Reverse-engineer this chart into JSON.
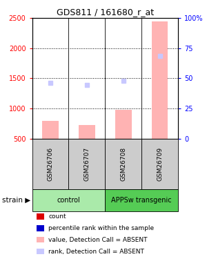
{
  "title": "GDS811 / 161680_r_at",
  "samples": [
    "GSM26706",
    "GSM26707",
    "GSM26708",
    "GSM26709"
  ],
  "bar_values": [
    790,
    730,
    980,
    2450
  ],
  "rank_values": [
    1420,
    1390,
    1460,
    1870
  ],
  "bar_color": "#ffb3b3",
  "rank_color": "#c8c8ff",
  "ylim_left": [
    500,
    2500
  ],
  "ylim_right": [
    0,
    100
  ],
  "yticks_left": [
    500,
    1000,
    1500,
    2000,
    2500
  ],
  "yticks_right": [
    0,
    25,
    50,
    75,
    100
  ],
  "ytick_labels_right": [
    "0",
    "25",
    "50",
    "75",
    "100%"
  ],
  "grid_lines": [
    1000,
    1500,
    2000
  ],
  "groups": [
    {
      "label": "control",
      "samples": [
        0,
        1
      ],
      "color": "#aaeaaa"
    },
    {
      "label": "APPSw transgenic",
      "samples": [
        2,
        3
      ],
      "color": "#55cc55"
    }
  ],
  "legend_items": [
    {
      "label": "count",
      "color": "#dd0000"
    },
    {
      "label": "percentile rank within the sample",
      "color": "#0000cc"
    },
    {
      "label": "value, Detection Call = ABSENT",
      "color": "#ffb3b3"
    },
    {
      "label": "rank, Detection Call = ABSENT",
      "color": "#c8c8ff"
    }
  ],
  "fig_width": 3.0,
  "fig_height": 3.75,
  "dpi": 100
}
